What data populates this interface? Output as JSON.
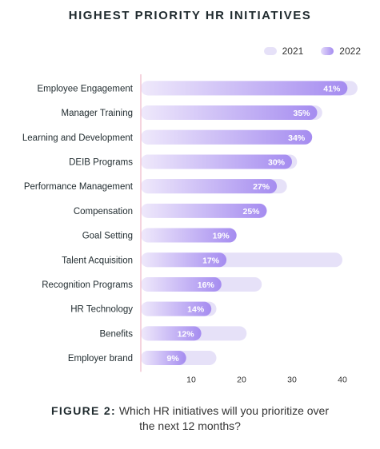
{
  "title": "HIGHEST PRIORITY HR INITIATIVES",
  "legend": {
    "a": "2021",
    "b": "2022"
  },
  "colors": {
    "y2021": "#e6e1f8",
    "y2022_start": "#efe9fb",
    "y2022_end": "#a58cf0",
    "divider": "#f2c6d4",
    "axis": "#d8d8e0"
  },
  "caption": {
    "label": "FIGURE 2:",
    "line1": "Which HR initiatives will you prioritize over",
    "line2": "the next 12 months?"
  },
  "chart_data": {
    "type": "bar",
    "orientation": "horizontal",
    "categories": [
      "Employee Engagement",
      "Manager Training",
      "Learning and Development",
      "DEIB Programs",
      "Performance Management",
      "Compensation",
      "Goal Setting",
      "Talent Acquisition",
      "Recognition Programs",
      "HR Technology",
      "Benefits",
      "Employer brand"
    ],
    "series": [
      {
        "name": "2021",
        "values": [
          43,
          36,
          34,
          31,
          29,
          null,
          null,
          40,
          24,
          15,
          21,
          15
        ]
      },
      {
        "name": "2022",
        "values": [
          41,
          35,
          34,
          30,
          27,
          25,
          19,
          17,
          16,
          14,
          12,
          9
        ],
        "labels": [
          "41%",
          "35%",
          "34%",
          "30%",
          "27%",
          "25%",
          "19%",
          "17%",
          "16%",
          "14%",
          "12%",
          "9%"
        ]
      }
    ],
    "xticks": [
      "10",
      "20",
      "30",
      "40"
    ],
    "xlim": [
      0,
      45
    ],
    "grid": false,
    "legend_position": "top-right"
  }
}
